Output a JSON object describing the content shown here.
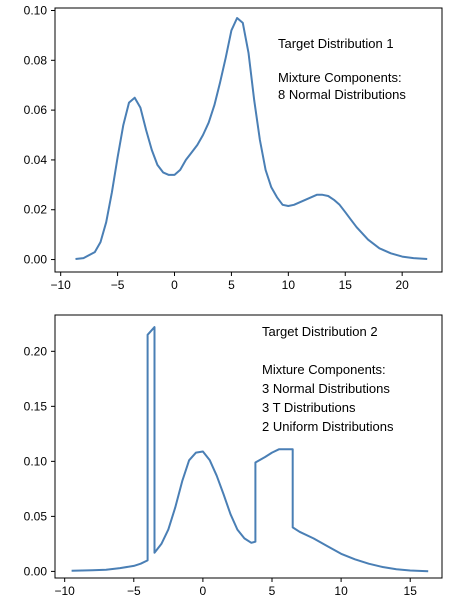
{
  "chart_data": [
    {
      "type": "line",
      "title": "",
      "xlabel": "",
      "ylabel": "",
      "xlim": [
        -10.5,
        23.5
      ],
      "ylim": [
        -0.005,
        0.101
      ],
      "xticks": [
        -10,
        -5,
        0,
        5,
        10,
        15,
        20
      ],
      "yticks": [
        0.0,
        0.02,
        0.04,
        0.06,
        0.08,
        0.1
      ],
      "ytick_labels": [
        "0.00",
        "0.02",
        "0.04",
        "0.06",
        "0.08",
        "0.10"
      ],
      "grid": false,
      "line_color": "#4a7fb5",
      "annotation": [
        "Target Distribution 1",
        "",
        "Mixture Components:",
        "8  Normal Distributions"
      ],
      "series": [
        {
          "x": [
            -8.7,
            -8,
            -7,
            -6.5,
            -6,
            -5.5,
            -5,
            -4.5,
            -4,
            -3.5,
            -3,
            -2.5,
            -2,
            -1.5,
            -1,
            -0.5,
            0,
            0.5,
            1,
            1.5,
            2,
            2.5,
            3,
            3.5,
            4,
            4.5,
            5,
            5.5,
            6,
            6.5,
            7,
            7.5,
            8,
            8.5,
            9,
            9.5,
            10,
            10.5,
            11,
            11.5,
            12,
            12.5,
            13,
            13.5,
            14,
            14.5,
            15,
            15.5,
            16,
            17,
            18,
            19,
            20,
            21,
            22.2
          ],
          "y": [
            0.0002,
            0.0006,
            0.003,
            0.007,
            0.015,
            0.027,
            0.041,
            0.054,
            0.063,
            0.065,
            0.061,
            0.052,
            0.044,
            0.038,
            0.035,
            0.034,
            0.034,
            0.036,
            0.04,
            0.043,
            0.046,
            0.05,
            0.055,
            0.062,
            0.071,
            0.081,
            0.092,
            0.097,
            0.095,
            0.083,
            0.064,
            0.048,
            0.036,
            0.029,
            0.025,
            0.022,
            0.0215,
            0.022,
            0.023,
            0.024,
            0.025,
            0.026,
            0.026,
            0.0255,
            0.024,
            0.022,
            0.019,
            0.016,
            0.013,
            0.008,
            0.0045,
            0.0025,
            0.0012,
            0.0006,
            0.0002
          ]
        }
      ]
    },
    {
      "type": "line",
      "title": "",
      "xlabel": "",
      "ylabel": "",
      "xlim": [
        -10.7,
        17.3
      ],
      "ylim": [
        -0.006,
        0.233
      ],
      "xticks": [
        -10,
        -5,
        0,
        5,
        10,
        15
      ],
      "yticks": [
        0.0,
        0.05,
        0.1,
        0.15,
        0.2
      ],
      "ytick_labels": [
        "0.00",
        "0.05",
        "0.10",
        "0.15",
        "0.20"
      ],
      "grid": false,
      "line_color": "#4a7fb5",
      "annotation": [
        "Target Distribution 2",
        "",
        "Mixture Components:",
        "3  Normal Distributions",
        "3  T Distributions",
        "2 Uniform Distributions"
      ],
      "series": [
        {
          "x": [
            -9.5,
            -8,
            -7,
            -6,
            -5,
            -4.5,
            -4,
            -4,
            -3.5,
            -3.5,
            -3,
            -2.5,
            -2,
            -1.5,
            -1,
            -0.5,
            0,
            0.5,
            1,
            1.5,
            2,
            2.5,
            3,
            3.5,
            3.8,
            3.8,
            4.5,
            5,
            5.5,
            6,
            6.5,
            6.5,
            7,
            8,
            9,
            10,
            11,
            12,
            13,
            14,
            15,
            16.3
          ],
          "y": [
            0.0005,
            0.001,
            0.0015,
            0.003,
            0.005,
            0.007,
            0.01,
            0.215,
            0.222,
            0.017,
            0.025,
            0.038,
            0.058,
            0.082,
            0.101,
            0.108,
            0.109,
            0.101,
            0.087,
            0.07,
            0.052,
            0.038,
            0.03,
            0.026,
            0.027,
            0.099,
            0.104,
            0.108,
            0.111,
            0.111,
            0.111,
            0.04,
            0.036,
            0.03,
            0.023,
            0.016,
            0.011,
            0.007,
            0.004,
            0.002,
            0.0008,
            0.0002
          ]
        }
      ]
    }
  ]
}
